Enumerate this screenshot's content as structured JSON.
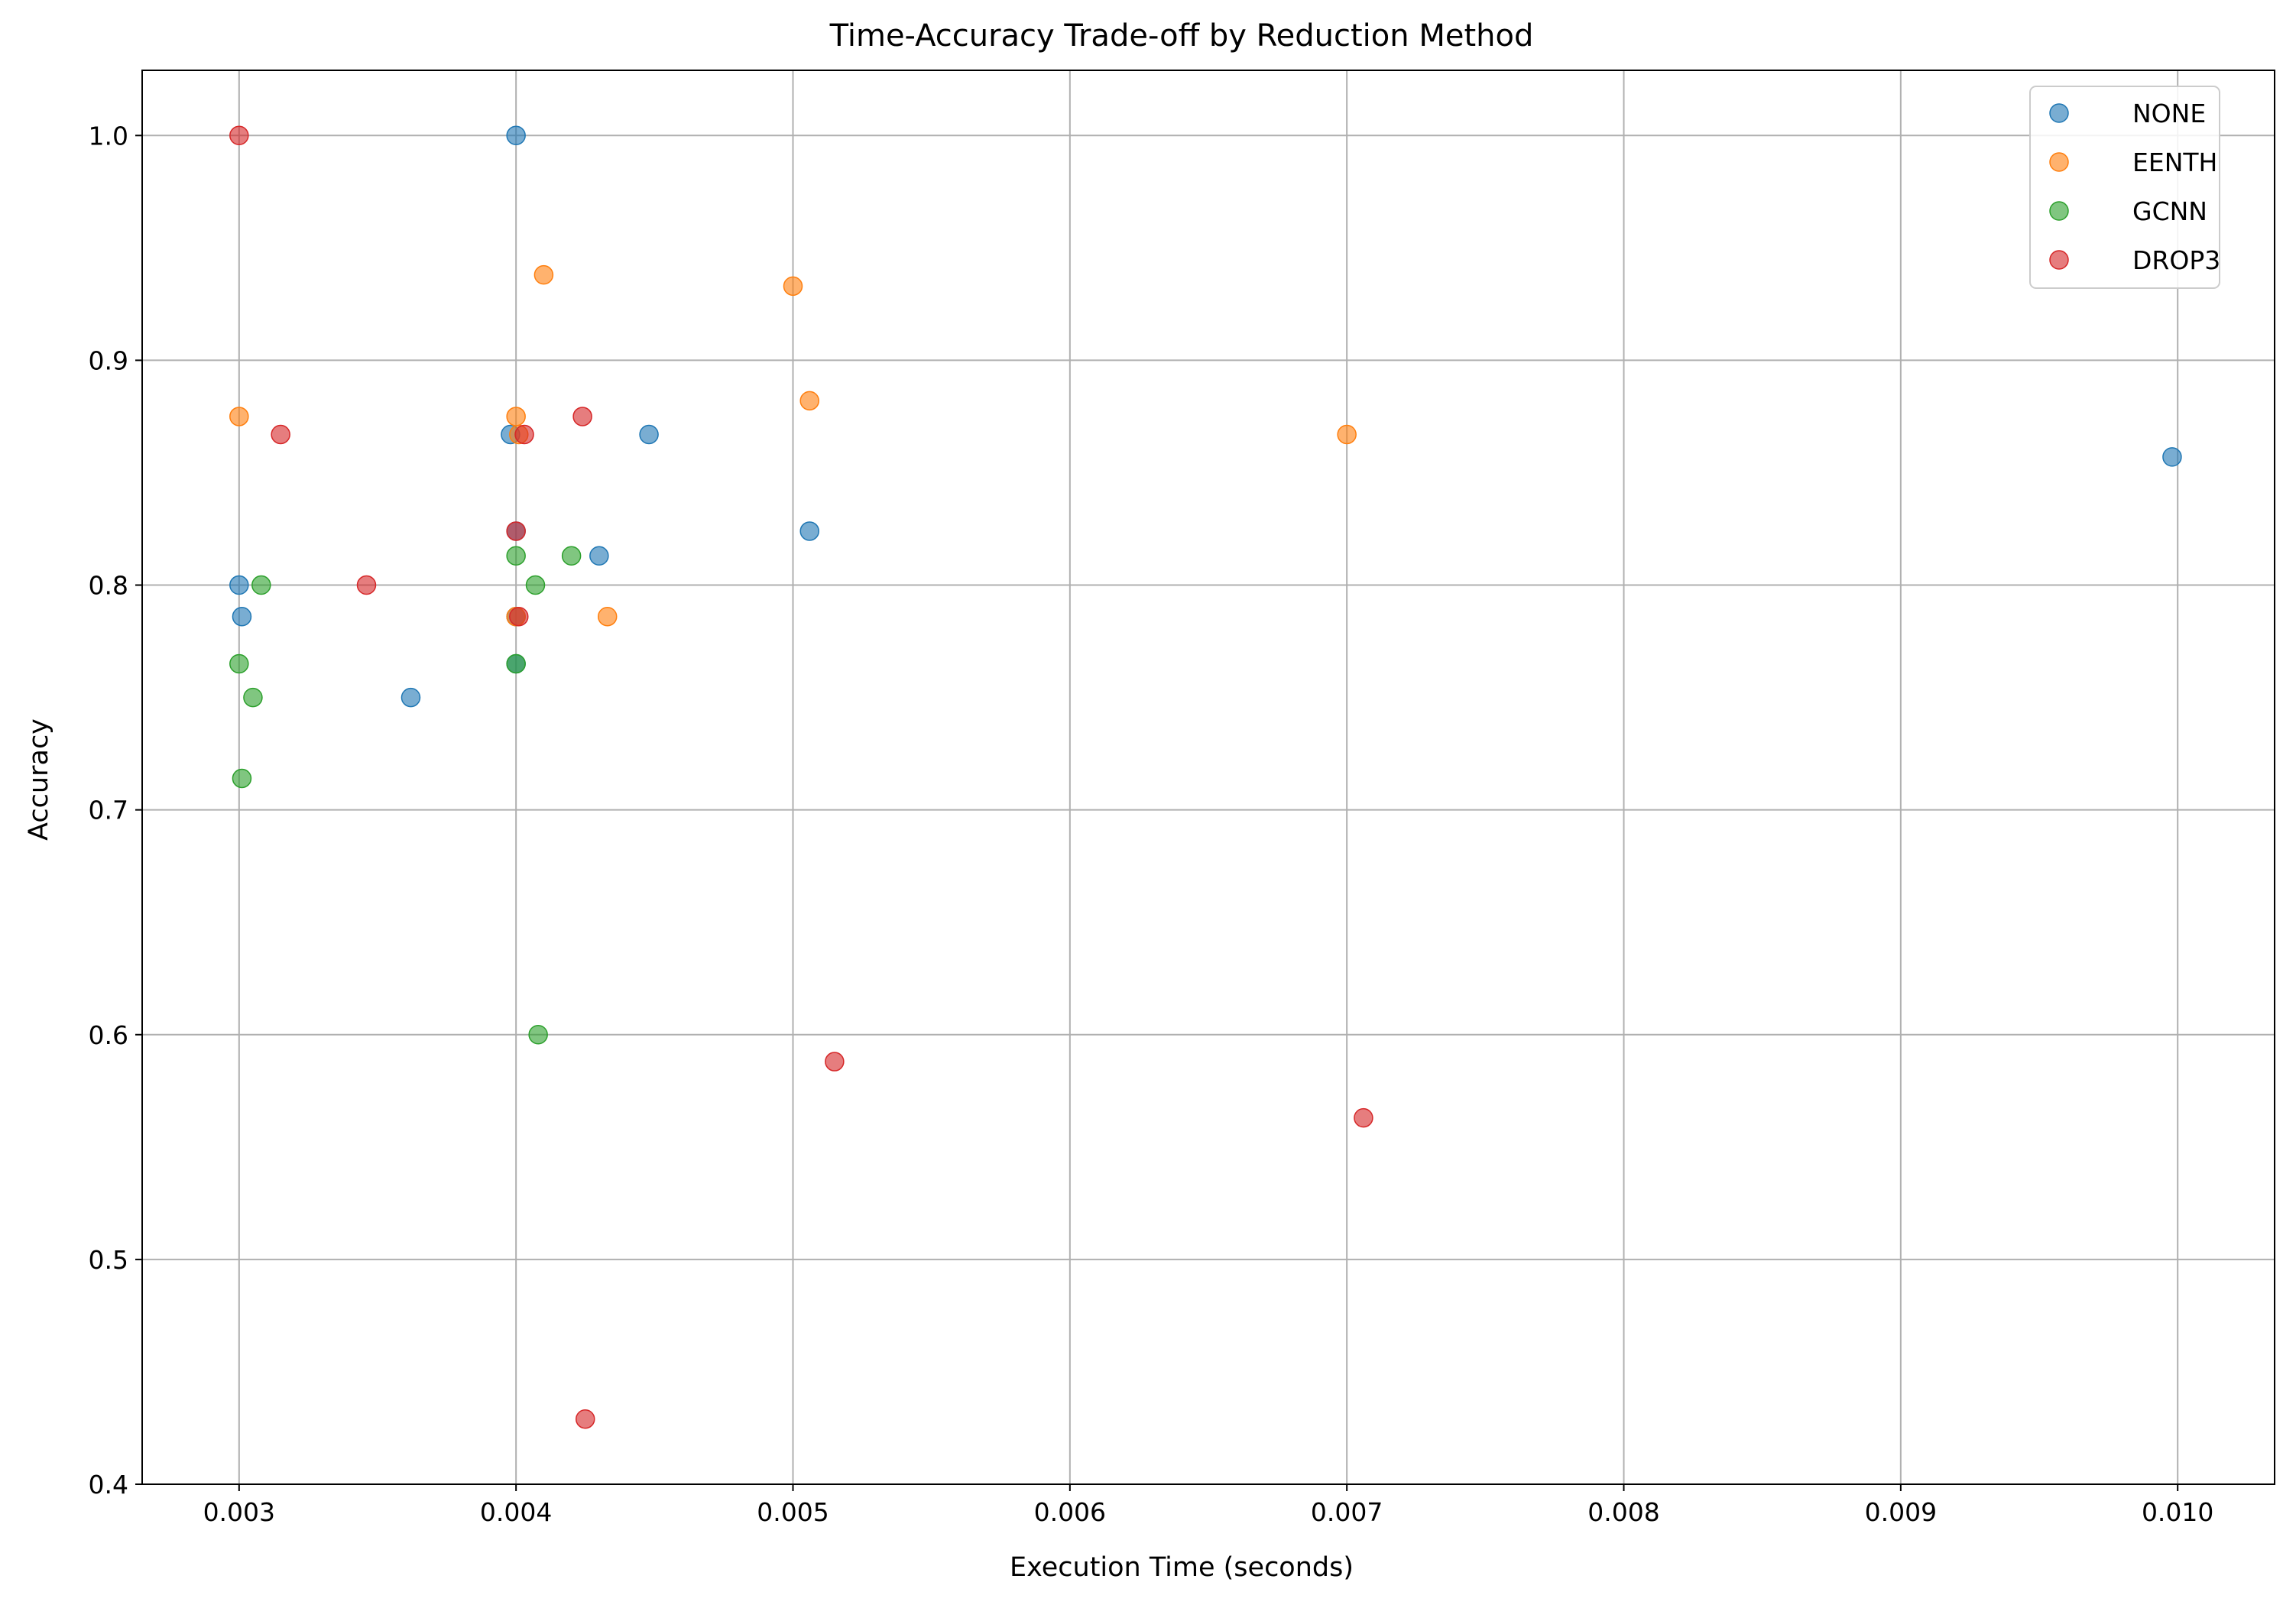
{
  "chart_data": {
    "type": "scatter",
    "title": "Time-Accuracy Trade-off by Reduction Method",
    "xlabel": "Execution Time (seconds)",
    "ylabel": "Accuracy",
    "xlim": [
      0.00265,
      0.01035
    ],
    "ylim": [
      0.4,
      1.029
    ],
    "xticks": [
      "0.003",
      "0.004",
      "0.005",
      "0.006",
      "0.007",
      "0.008",
      "0.009",
      "0.010"
    ],
    "yticks": [
      "0.4",
      "0.5",
      "0.6",
      "0.7",
      "0.8",
      "0.9",
      "1.0"
    ],
    "grid": true,
    "legend_position": "top-right",
    "series": [
      {
        "name": "NONE",
        "color": "#1f77b4",
        "points": [
          {
            "x": 0.004,
            "y": 1.0
          },
          {
            "x": 0.00398,
            "y": 0.867
          },
          {
            "x": 0.00448,
            "y": 0.867
          },
          {
            "x": 0.003,
            "y": 0.8
          },
          {
            "x": 0.00301,
            "y": 0.786
          },
          {
            "x": 0.00362,
            "y": 0.75
          },
          {
            "x": 0.004,
            "y": 0.824
          },
          {
            "x": 0.0043,
            "y": 0.813
          },
          {
            "x": 0.00506,
            "y": 0.824
          },
          {
            "x": 0.00998,
            "y": 0.857
          },
          {
            "x": 0.004,
            "y": 0.786
          },
          {
            "x": 0.004,
            "y": 0.765
          }
        ]
      },
      {
        "name": "EENTH",
        "color": "#ff7f0e",
        "points": [
          {
            "x": 0.0041,
            "y": 0.938
          },
          {
            "x": 0.005,
            "y": 0.933
          },
          {
            "x": 0.003,
            "y": 0.875
          },
          {
            "x": 0.004,
            "y": 0.875
          },
          {
            "x": 0.00506,
            "y": 0.882
          },
          {
            "x": 0.007,
            "y": 0.867
          },
          {
            "x": 0.00433,
            "y": 0.786
          },
          {
            "x": 0.004,
            "y": 0.786
          },
          {
            "x": 0.00401,
            "y": 0.867
          }
        ]
      },
      {
        "name": "GCNN",
        "color": "#2ca02c",
        "points": [
          {
            "x": 0.00308,
            "y": 0.8
          },
          {
            "x": 0.003,
            "y": 0.765
          },
          {
            "x": 0.00305,
            "y": 0.75
          },
          {
            "x": 0.00301,
            "y": 0.714
          },
          {
            "x": 0.004,
            "y": 0.813
          },
          {
            "x": 0.0042,
            "y": 0.813
          },
          {
            "x": 0.00407,
            "y": 0.8
          },
          {
            "x": 0.004,
            "y": 0.765
          },
          {
            "x": 0.00408,
            "y": 0.6
          }
        ]
      },
      {
        "name": "DROP3",
        "color": "#d62728",
        "points": [
          {
            "x": 0.003,
            "y": 1.0
          },
          {
            "x": 0.00315,
            "y": 0.867
          },
          {
            "x": 0.00346,
            "y": 0.8
          },
          {
            "x": 0.00424,
            "y": 0.875
          },
          {
            "x": 0.00403,
            "y": 0.867
          },
          {
            "x": 0.004,
            "y": 0.824
          },
          {
            "x": 0.00401,
            "y": 0.786
          },
          {
            "x": 0.00515,
            "y": 0.588
          },
          {
            "x": 0.00706,
            "y": 0.563
          },
          {
            "x": 0.00425,
            "y": 0.429
          }
        ]
      }
    ]
  }
}
